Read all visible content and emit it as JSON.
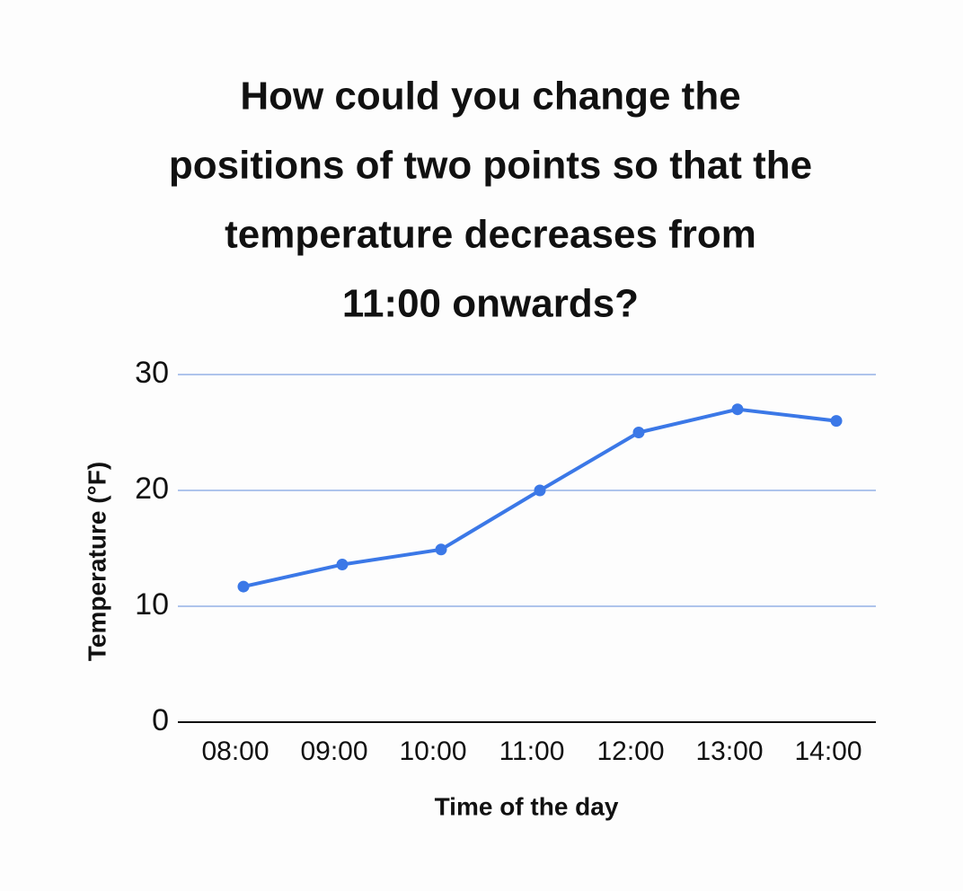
{
  "chart_data": {
    "type": "line",
    "title": [
      "How could you change the",
      "positions of two points so that the",
      "temperature decreases from",
      "11:00 onwards?"
    ],
    "x_label": "Time of the day",
    "y_label": "Temperature (°F)",
    "categories": [
      "08:00",
      "09:00",
      "10:00",
      "11:00",
      "12:00",
      "13:00",
      "14:00"
    ],
    "values": [
      11.7,
      13.6,
      14.9,
      20,
      25,
      27,
      26
    ],
    "color": "#3b78e7",
    "ylim": [
      0,
      30
    ],
    "yticks": [
      0,
      10,
      20,
      30
    ],
    "grid": true
  }
}
